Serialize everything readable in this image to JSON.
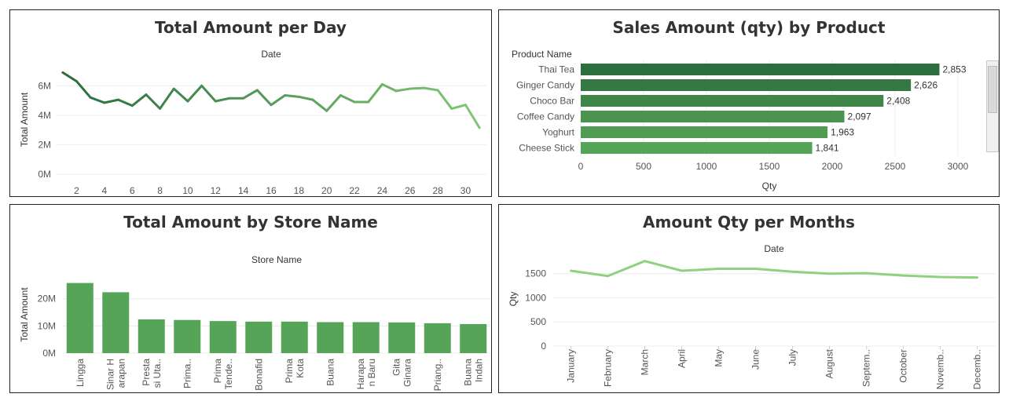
{
  "dashboard": {
    "colors": {
      "dark": "#2d6e3e",
      "mid": "#4f9b53",
      "light": "#7fc673",
      "grid": "#ececec"
    },
    "panels": [
      {
        "id": "daily",
        "title": "Total Amount per Day"
      },
      {
        "id": "product",
        "title": "Sales Amount (qty) by Product"
      },
      {
        "id": "store",
        "title": "Total Amount by Store Name"
      },
      {
        "id": "monthly",
        "title": "Amount Qty per Months"
      }
    ]
  },
  "chart_data": [
    {
      "type": "line",
      "title": "Total Amount per Day",
      "xlabel": "Date",
      "ylabel": "Total Amount",
      "x": [
        1,
        2,
        3,
        4,
        5,
        6,
        7,
        8,
        9,
        10,
        11,
        12,
        13,
        14,
        15,
        16,
        17,
        18,
        19,
        20,
        21,
        22,
        23,
        24,
        25,
        26,
        27,
        28,
        29,
        30,
        31
      ],
      "x_ticks": [
        "2",
        "4",
        "6",
        "8",
        "10",
        "12",
        "14",
        "16",
        "18",
        "20",
        "22",
        "24",
        "26",
        "28",
        "30"
      ],
      "y_ticks": [
        "0M",
        "2M",
        "4M",
        "6M"
      ],
      "values": [
        6.9,
        6.3,
        5.2,
        4.85,
        5.05,
        4.65,
        5.4,
        4.45,
        5.8,
        4.95,
        6.0,
        4.95,
        5.15,
        5.15,
        5.7,
        4.7,
        5.35,
        5.25,
        5.05,
        4.3,
        5.35,
        4.9,
        4.9,
        6.1,
        5.65,
        5.8,
        5.85,
        5.7,
        4.45,
        4.7,
        3.15
      ],
      "ylim": [
        0,
        7.4
      ],
      "color_scale": [
        "#2d6e3e",
        "#7fc673"
      ]
    },
    {
      "type": "bar",
      "orientation": "horizontal",
      "title": "Sales Amount (qty) by Product",
      "xlabel": "Qty",
      "ylabel": "Product Name",
      "categories": [
        "Thai Tea",
        "Ginger Candy",
        "Choco Bar",
        "Coffee Candy",
        "Yoghurt",
        "Cheese Stick"
      ],
      "values": [
        2853,
        2626,
        2408,
        2097,
        1963,
        1841
      ],
      "data_labels": [
        "2,853",
        "2,626",
        "2,408",
        "2,097",
        "1,963",
        "1,841"
      ],
      "x_ticks": [
        "0",
        "500",
        "1000",
        "1500",
        "2000",
        "2500",
        "3000"
      ],
      "xlim": [
        0,
        3000
      ],
      "colors": [
        "#2d6e3e",
        "#367843",
        "#3f8748",
        "#4a944f",
        "#509c53",
        "#56a457"
      ]
    },
    {
      "type": "bar",
      "title": "Total Amount by Store Name",
      "xlabel": "Store Name",
      "ylabel": "Total Amount",
      "categories": [
        [
          "Lingga"
        ],
        [
          "Sinar H",
          "arapan"
        ],
        [
          "Presta",
          "si Uta.."
        ],
        [
          "Prima.."
        ],
        [
          "Prima",
          "Tende.."
        ],
        [
          "Bonafid"
        ],
        [
          "Prima",
          "Kota"
        ],
        [
          "Buana"
        ],
        [
          "Harapa",
          "n Baru"
        ],
        [
          "Gita",
          "Ginara"
        ],
        [
          "Priang.."
        ],
        [
          "Buana",
          "Indah"
        ]
      ],
      "values": [
        25.8,
        22.4,
        12.4,
        12.2,
        11.8,
        11.6,
        11.6,
        11.4,
        11.4,
        11.3,
        11.0,
        10.7
      ],
      "y_ticks": [
        "0M",
        "10M",
        "20M"
      ],
      "ylim": [
        0,
        28
      ],
      "color": "#56a457"
    },
    {
      "type": "line",
      "title": "Amount Qty per Months",
      "xlabel": "Date",
      "ylabel": "Qty",
      "categories": [
        "January",
        "February",
        "March",
        "April",
        "May",
        "June",
        "July",
        "August",
        "Septem..",
        "October",
        "Novemb..",
        "Decemb.."
      ],
      "values": [
        1560,
        1450,
        1760,
        1560,
        1600,
        1600,
        1540,
        1500,
        1510,
        1460,
        1430,
        1420
      ],
      "y_ticks": [
        "0",
        "500",
        "1000",
        "1500"
      ],
      "ylim": [
        0,
        1950
      ],
      "color": "#8fd17f"
    }
  ]
}
